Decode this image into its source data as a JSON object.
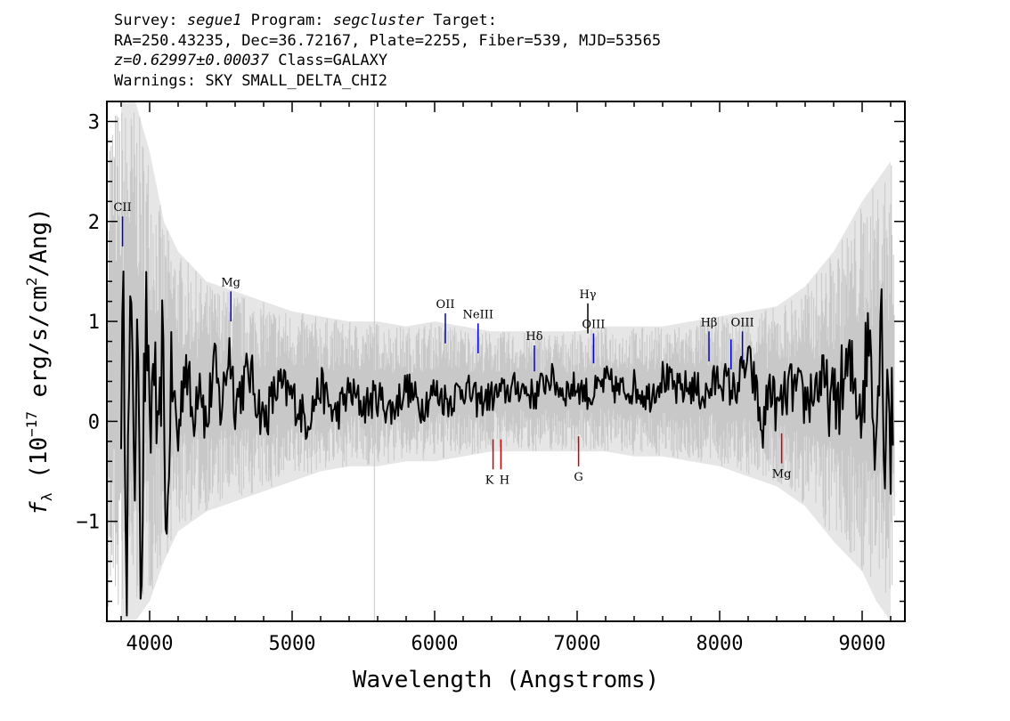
{
  "header": {
    "survey_label": "Survey:",
    "survey": "segue1",
    "program_label": "Program:",
    "program": "segcluster",
    "target_label": "Target:",
    "line2": "RA=250.43235, Dec=36.72167, Plate=2255, Fiber=539, MJD=53565",
    "redshift": "z=0.62997±0.00037",
    "class": "Class=GALAXY",
    "warnings": "Warnings: SKY SMALL_DELTA_CHI2"
  },
  "chart_data": {
    "type": "line",
    "xlabel": "Wavelength (Angstroms)",
    "ylabel": "f_λ (10^-17 erg/s/cm^2/Ang)",
    "xlim": [
      3700,
      9300
    ],
    "ylim": [
      -2.0,
      3.2
    ],
    "x_ticks": [
      4000,
      5000,
      6000,
      7000,
      8000,
      9000
    ],
    "y_ticks": [
      -1,
      0,
      1,
      2,
      3
    ],
    "grid": false,
    "series": [
      {
        "role": "error",
        "color": "#c8c8c8",
        "x": [
          3800,
          3900,
          4000,
          4100,
          4200,
          4400,
          4600,
          4800,
          5000,
          5200,
          5400,
          5600,
          5800,
          6000,
          6200,
          6400,
          6600,
          6800,
          7000,
          7200,
          7400,
          7600,
          7800,
          8000,
          8200,
          8400,
          8600,
          8800,
          9000,
          9100,
          9200
        ],
        "upper": [
          3.2,
          3.2,
          2.7,
          2.0,
          1.7,
          1.4,
          1.3,
          1.2,
          1.1,
          1.05,
          1.0,
          1.0,
          0.95,
          1.0,
          0.95,
          0.9,
          0.9,
          0.9,
          0.9,
          0.95,
          0.95,
          0.95,
          1.0,
          1.05,
          1.1,
          1.15,
          1.35,
          1.7,
          2.2,
          2.4,
          2.6
        ],
        "lower": [
          -2.0,
          -2.0,
          -1.8,
          -1.4,
          -1.1,
          -0.9,
          -0.8,
          -0.7,
          -0.6,
          -0.5,
          -0.45,
          -0.45,
          -0.4,
          -0.4,
          -0.35,
          -0.3,
          -0.3,
          -0.3,
          -0.3,
          -0.3,
          -0.35,
          -0.35,
          -0.4,
          -0.45,
          -0.55,
          -0.65,
          -0.85,
          -1.2,
          -1.5,
          -1.8,
          -2.0
        ]
      },
      {
        "role": "flux",
        "color": "#000000",
        "x": [
          3800,
          3820,
          3840,
          3860,
          3880,
          3900,
          3920,
          3940,
          3960,
          3980,
          4000,
          4030,
          4060,
          4090,
          4120,
          4150,
          4200,
          4250,
          4300,
          4350,
          4400,
          4450,
          4500,
          4560,
          4600,
          4700,
          4800,
          4900,
          5000,
          5100,
          5200,
          5300,
          5400,
          5500,
          5600,
          5700,
          5800,
          5900,
          6000,
          6100,
          6200,
          6300,
          6400,
          6500,
          6600,
          6700,
          6800,
          6900,
          7000,
          7100,
          7200,
          7300,
          7400,
          7500,
          7600,
          7700,
          7800,
          7900,
          8000,
          8100,
          8200,
          8250,
          8300,
          8350,
          8400,
          8500,
          8600,
          8700,
          8800,
          8900,
          9000,
          9050,
          9100,
          9130,
          9160,
          9180,
          9200,
          9220
        ],
        "y": [
          0.3,
          1.0,
          -1.3,
          0.6,
          0.9,
          -0.8,
          1.1,
          -1.7,
          0.2,
          1.15,
          -0.4,
          0.8,
          -0.6,
          0.9,
          -1.3,
          0.5,
          -0.2,
          0.7,
          0.0,
          0.55,
          -0.1,
          0.6,
          0.1,
          0.75,
          0.2,
          0.5,
          0.0,
          0.35,
          0.25,
          0.0,
          0.35,
          0.05,
          0.3,
          0.15,
          0.25,
          0.1,
          0.35,
          0.15,
          0.3,
          0.2,
          0.35,
          0.2,
          0.25,
          0.3,
          0.35,
          0.25,
          0.45,
          0.3,
          0.35,
          0.25,
          0.4,
          0.3,
          0.35,
          0.25,
          0.45,
          0.3,
          0.35,
          0.25,
          0.45,
          0.3,
          0.6,
          0.35,
          -0.15,
          0.4,
          0.1,
          0.35,
          0.2,
          0.4,
          0.15,
          0.5,
          0.2,
          0.95,
          -0.2,
          1.3,
          -0.3,
          0.7,
          -0.3,
          0.35
        ]
      }
    ],
    "emission_lines": [
      {
        "label": "CII",
        "x": 3810,
        "y_bottom": 1.75,
        "y_top": 2.05,
        "color": "#0000cc"
      },
      {
        "label": "Mg",
        "x": 4570,
        "y_bottom": 1.0,
        "y_top": 1.3,
        "color": "#0000cc"
      },
      {
        "label": "OII",
        "x": 6075,
        "y_bottom": 0.78,
        "y_top": 1.08,
        "color": "#0000cc"
      },
      {
        "label": "NeIII",
        "x": 6305,
        "y_bottom": 0.68,
        "y_top": 0.98,
        "color": "#0000cc"
      },
      {
        "label": "Hδ",
        "x": 6700,
        "y_bottom": 0.5,
        "y_top": 0.76,
        "color": "#0000cc"
      },
      {
        "label": "Hγ",
        "x": 7075,
        "y_bottom": 0.88,
        "y_top": 1.18,
        "color": "#000000"
      },
      {
        "label": "OIII",
        "x": 7115,
        "y_bottom": 0.58,
        "y_top": 0.88,
        "color": "#0000cc"
      },
      {
        "label": "Hβ",
        "x": 7925,
        "y_bottom": 0.6,
        "y_top": 0.9,
        "color": "#0000cc"
      },
      {
        "label": "",
        "x": 8080,
        "y_bottom": 0.52,
        "y_top": 0.82,
        "color": "#0000cc"
      },
      {
        "label": "OIII",
        "x": 8160,
        "y_bottom": 0.6,
        "y_top": 0.9,
        "color": "#0000cc"
      }
    ],
    "absorption_lines": [
      {
        "label": "K",
        "x": 6410,
        "y_top": -0.18,
        "y_bottom": -0.48,
        "color": "#cc0000"
      },
      {
        "label": "H",
        "x": 6465,
        "y_top": -0.18,
        "y_bottom": -0.48,
        "color": "#cc0000"
      },
      {
        "label": "G",
        "x": 7010,
        "y_top": -0.15,
        "y_bottom": -0.45,
        "color": "#cc0000"
      },
      {
        "label": "Mg",
        "x": 8435,
        "y_top": -0.12,
        "y_bottom": -0.42,
        "color": "#cc0000"
      }
    ],
    "sky_lines": [
      5577
    ]
  }
}
